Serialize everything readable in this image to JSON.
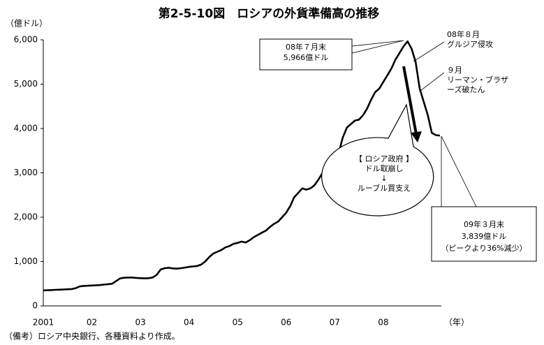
{
  "chart_data": {
    "type": "line",
    "title": "第2-5-10図　ロシアの外貨準備高の推移",
    "ylabel": "（億ドル）",
    "xlabel": "（年）",
    "note": "（備考）ロシア中央銀行、各種資料より作成。",
    "color": "#000000",
    "categories": [
      "2001",
      null,
      null,
      null,
      null,
      null,
      null,
      null,
      null,
      null,
      null,
      null,
      "02",
      null,
      null,
      null,
      null,
      null,
      null,
      null,
      null,
      null,
      null,
      null,
      "03",
      null,
      null,
      null,
      null,
      null,
      null,
      null,
      null,
      null,
      null,
      null,
      "04",
      null,
      null,
      null,
      null,
      null,
      null,
      null,
      null,
      null,
      null,
      null,
      "05",
      null,
      null,
      null,
      null,
      null,
      null,
      null,
      null,
      null,
      null,
      null,
      "06",
      null,
      null,
      null,
      null,
      null,
      null,
      null,
      null,
      null,
      null,
      null,
      "07",
      null,
      null,
      null,
      null,
      null,
      null,
      null,
      null,
      null,
      null,
      null,
      "08",
      null,
      null,
      null,
      null,
      null,
      null,
      null,
      null,
      null,
      null,
      null,
      null,
      null,
      null
    ],
    "values": [
      350,
      352,
      358,
      362,
      365,
      370,
      375,
      380,
      400,
      440,
      450,
      455,
      460,
      465,
      470,
      480,
      490,
      500,
      560,
      620,
      635,
      640,
      640,
      632,
      625,
      620,
      625,
      640,
      700,
      820,
      850,
      860,
      845,
      840,
      850,
      865,
      880,
      890,
      900,
      930,
      1000,
      1100,
      1180,
      1220,
      1260,
      1320,
      1350,
      1400,
      1420,
      1450,
      1430,
      1480,
      1550,
      1600,
      1650,
      1700,
      1780,
      1850,
      1900,
      2000,
      2100,
      2250,
      2450,
      2550,
      2650,
      2620,
      2650,
      2720,
      2850,
      3000,
      3050,
      3100,
      3250,
      3450,
      3800,
      4020,
      4100,
      4180,
      4200,
      4300,
      4450,
      4650,
      4820,
      4900,
      5050,
      5200,
      5350,
      5550,
      5700,
      5850,
      5966,
      5800,
      5500,
      4900,
      4600,
      4300,
      3900,
      3850,
      3839
    ],
    "ylim": [
      0,
      6000
    ],
    "yticks": [
      0,
      {
        "value": 1000,
        "label": "1,000"
      },
      {
        "value": 2000,
        "label": "2,000"
      },
      {
        "value": 3000,
        "label": "3,000"
      },
      {
        "value": 4000,
        "label": "4,000"
      },
      {
        "value": 5000,
        "label": "5,000"
      },
      {
        "value": 6000,
        "label": "6,000"
      }
    ],
    "annotations": [
      {
        "lines": [
          "08年７月末",
          "5,966億ドル"
        ]
      },
      {
        "lines": [
          "08年８月",
          "グルジア侵攻"
        ]
      },
      {
        "lines": [
          "９月",
          "リーマン・ブラザ",
          "ーズ破たん"
        ]
      },
      {
        "lines": [
          "【 ロシア政府 】",
          "ドル取崩し",
          "↓",
          "ルーブル買支え"
        ]
      },
      {
        "lines": [
          "09年３月末",
          "3,839億ドル",
          "（ピークより36%減少）"
        ]
      }
    ]
  }
}
